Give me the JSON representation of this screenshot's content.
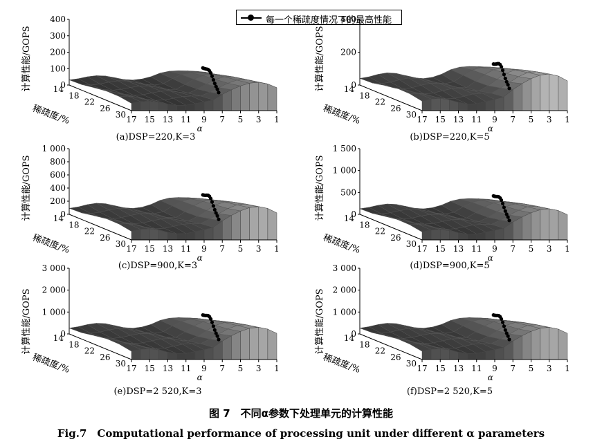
{
  "legend": {
    "label": "每一个稀疏度情况下的最高性能"
  },
  "caption": {
    "cn": "图 7　不同α参数下处理单元的计算性能",
    "en": "Fig.7　Computational performance of processing unit under different α parameters"
  },
  "colors": {
    "surface_dark": "#1a1a1a",
    "surface_light": "#e8e8e8",
    "marker": "#000000"
  },
  "chart_data": [
    {
      "type": "surface3d",
      "caption": "(a)DSP=220,K=3",
      "zlabel": "计算性能/GOPS",
      "ylabel": "稀疏度/%",
      "xlabel": "α",
      "z_ticks": [
        "0",
        "100",
        "200",
        "300",
        "400"
      ],
      "z_max": 400,
      "y_ticks": [
        "14",
        "18",
        "22",
        "26",
        "30"
      ],
      "x_ticks": [
        "17",
        "15",
        "13",
        "11",
        "9",
        "7",
        "5",
        "3",
        "1"
      ],
      "peak_z": 340
    },
    {
      "type": "surface3d",
      "caption": "(b)DSP=220,K=5",
      "zlabel": "计算性能/GOPS",
      "ylabel": "稀疏度/%",
      "xlabel": "α",
      "z_ticks": [
        "0",
        "200",
        "400"
      ],
      "z_max": 400,
      "y_ticks": [
        "14",
        "18",
        "22",
        "26",
        "30"
      ],
      "x_ticks": [
        "17",
        "15",
        "13",
        "11",
        "9",
        "7",
        "5",
        "3",
        "1"
      ],
      "peak_z": 440
    },
    {
      "type": "surface3d",
      "caption": "(c)DSP=900,K=3",
      "zlabel": "计算性能/GOPS",
      "ylabel": "稀疏度/%",
      "xlabel": "α",
      "z_ticks": [
        "0",
        "200",
        "400",
        "600",
        "800",
        "1 000"
      ],
      "z_max": 1000,
      "y_ticks": [
        "14",
        "18",
        "22",
        "26",
        "30"
      ],
      "x_ticks": [
        "17",
        "15",
        "13",
        "11",
        "9",
        "7",
        "5",
        "3",
        "1"
      ],
      "peak_z": 1000
    },
    {
      "type": "surface3d",
      "caption": "(d)DSP=900,K=5",
      "zlabel": "计算性能/GOPS",
      "ylabel": "稀疏度/%",
      "xlabel": "α",
      "z_ticks": [
        "0",
        "500",
        "1 000",
        "1 500"
      ],
      "z_max": 1500,
      "y_ticks": [
        "14",
        "18",
        "22",
        "26",
        "30"
      ],
      "x_ticks": [
        "17",
        "15",
        "13",
        "11",
        "9",
        "7",
        "5",
        "3",
        "1"
      ],
      "peak_z": 1400
    },
    {
      "type": "surface3d",
      "caption": "(e)DSP=2 520,K=3",
      "zlabel": "计算性能/GOPS",
      "ylabel": "稀疏度/%",
      "xlabel": "α",
      "z_ticks": [
        "0",
        "1 000",
        "2 000",
        "3 000"
      ],
      "z_max": 3000,
      "y_ticks": [
        "14",
        "18",
        "22",
        "26",
        "30"
      ],
      "x_ticks": [
        "17",
        "15",
        "13",
        "11",
        "9",
        "7",
        "5",
        "3",
        "1"
      ],
      "peak_z": 2900
    },
    {
      "type": "surface3d",
      "caption": "(f)DSP=2 520,K=5",
      "zlabel": "计算性能/GOPS",
      "ylabel": "稀疏度/%",
      "xlabel": "α",
      "z_ticks": [
        "0",
        "1 000",
        "2 000",
        "3 000"
      ],
      "z_max": 3000,
      "y_ticks": [
        "14",
        "18",
        "22",
        "26",
        "30"
      ],
      "x_ticks": [
        "17",
        "15",
        "13",
        "11",
        "9",
        "7",
        "5",
        "3",
        "1"
      ],
      "peak_z": 2900
    }
  ]
}
